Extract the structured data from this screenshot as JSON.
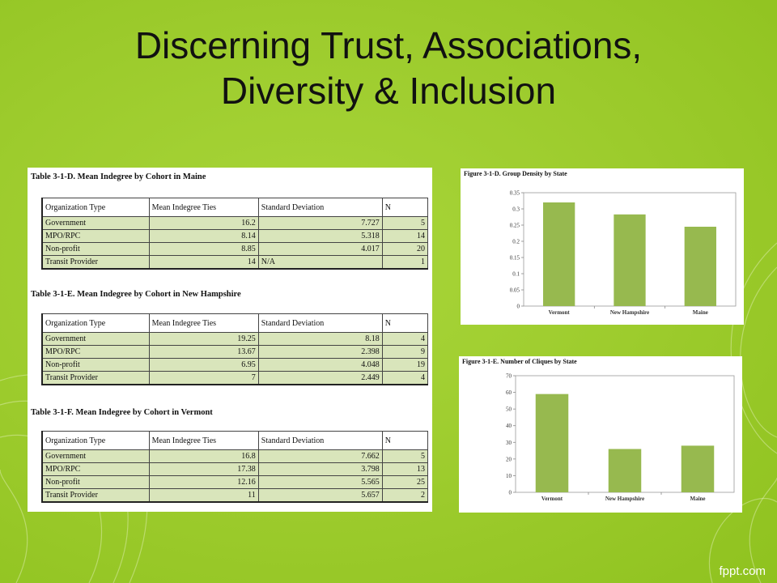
{
  "title": {
    "line1": "Discerning Trust, Associations,",
    "line2": "Diversity & Inclusion"
  },
  "colors": {
    "background": "#9ccb2c",
    "bar": "#97b94f",
    "row_fill": "#d9e5bb"
  },
  "tables": [
    {
      "caption": "Table 3-1-D. Mean Indegree by Cohort in Maine",
      "headers": [
        "Organization Type",
        "Mean Indegree Ties",
        "Standard Deviation",
        "N"
      ],
      "rows": [
        [
          "Government",
          "16.2",
          "7.727",
          "5"
        ],
        [
          "MPO/RPC",
          "8.14",
          "5.318",
          "14"
        ],
        [
          "Non-profit",
          "8.85",
          "4.017",
          "20"
        ],
        [
          "Transit Provider",
          "14",
          "N/A",
          "1"
        ]
      ]
    },
    {
      "caption": "Table 3-1-E. Mean Indegree by Cohort in New Hampshire",
      "headers": [
        "Organization Type",
        "Mean Indegree Ties",
        "Standard Deviation",
        "N"
      ],
      "rows": [
        [
          "Government",
          "19.25",
          "8.18",
          "4"
        ],
        [
          "MPO/RPC",
          "13.67",
          "2.398",
          "9"
        ],
        [
          "Non-profit",
          "6.95",
          "4.048",
          "19"
        ],
        [
          "Transit Provider",
          "7",
          "2.449",
          "4"
        ]
      ]
    },
    {
      "caption": "Table 3-1-F. Mean Indegree by Cohort in Vermont",
      "headers": [
        "Organization Type",
        "Mean Indegree Ties",
        "Standard Deviation",
        "N"
      ],
      "rows": [
        [
          "Government",
          "16.8",
          "7.662",
          "5"
        ],
        [
          "MPO/RPC",
          "17.38",
          "3.798",
          "13"
        ],
        [
          "Non-profit",
          "12.16",
          "5.565",
          "25"
        ],
        [
          "Transit Provider",
          "11",
          "5.657",
          "2"
        ]
      ]
    }
  ],
  "chart_data": [
    {
      "type": "bar",
      "title": "Figure 3-1-D. Group Density by State",
      "categories": [
        "Vermont",
        "New Hampshire",
        "Maine"
      ],
      "values": [
        0.32,
        0.283,
        0.245
      ],
      "yticks": [
        "0",
        "0.05",
        "0.1",
        "0.15",
        "0.2",
        "0.25",
        "0.3",
        "0.35"
      ],
      "ylim": [
        0,
        0.35
      ],
      "grid": false,
      "xlabel": "",
      "ylabel": ""
    },
    {
      "type": "bar",
      "title": "Figure 3-1-E. Number of Cliques by State",
      "categories": [
        "Vermont",
        "New Hampshire",
        "Maine"
      ],
      "values": [
        59,
        26,
        28
      ],
      "yticks": [
        "0",
        "10",
        "20",
        "30",
        "40",
        "50",
        "60",
        "70"
      ],
      "ylim": [
        0,
        70
      ],
      "grid": false,
      "xlabel": "",
      "ylabel": ""
    }
  ],
  "branding": {
    "text": "fppt.com"
  }
}
